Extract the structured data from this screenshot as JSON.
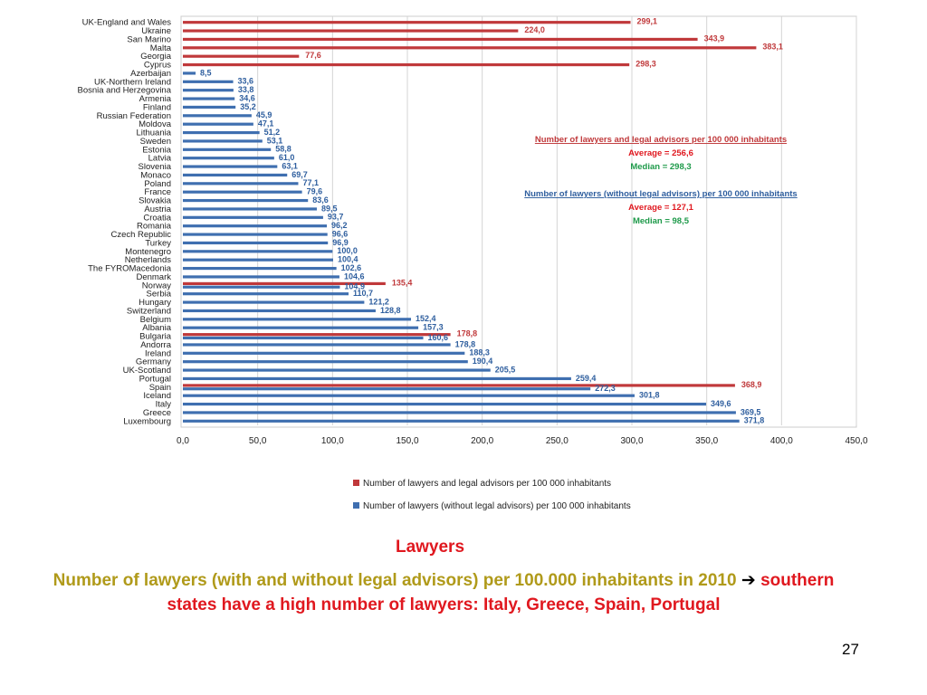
{
  "colors": {
    "with_advisors": "#c0393b",
    "without_advisors": "#3f6fb0",
    "label_red": "#c0393b",
    "label_blue": "#2e5e9e",
    "average": "#e0181f",
    "median": "#1e9a4a",
    "caption_olive": "#b09a1a",
    "caption_red": "#e0181f"
  },
  "chart_data": {
    "type": "bar",
    "orientation": "horizontal",
    "categories": [
      "UK-England and Wales",
      "Ukraine",
      "San Marino",
      "Malta",
      "Georgia",
      "Cyprus",
      "Azerbaijan",
      "UK-Northern Ireland",
      "Bosnia and Herzegovina",
      "Armenia",
      "Finland",
      "Russian Federation",
      "Moldova",
      "Lithuania",
      "Sweden",
      "Estonia",
      "Latvia",
      "Slovenia",
      "Monaco",
      "Poland",
      "France",
      "Slovakia",
      "Austria",
      "Croatia",
      "Romania",
      "Czech Republic",
      "Turkey",
      "Montenegro",
      "Netherlands",
      "The FYROMacedonia",
      "Denmark",
      "Norway",
      "Serbia",
      "Hungary",
      "Switzerland",
      "Belgium",
      "Albania",
      "Bulgaria",
      "Andorra",
      "Ireland",
      "Germany",
      "UK-Scotland",
      "Portugal",
      "Spain",
      "Iceland",
      "Italy",
      "Greece",
      "Luxembourg"
    ],
    "series": [
      {
        "name": "Number of lawyers and legal advisors per 100 000 inhabitants",
        "values": [
          299.1,
          224.0,
          343.9,
          383.1,
          77.6,
          298.3,
          null,
          null,
          null,
          null,
          null,
          null,
          null,
          null,
          null,
          null,
          null,
          null,
          null,
          null,
          null,
          null,
          null,
          null,
          null,
          null,
          null,
          null,
          null,
          null,
          null,
          135.4,
          null,
          null,
          null,
          null,
          null,
          178.8,
          null,
          null,
          null,
          null,
          null,
          368.9,
          null,
          null,
          null,
          null
        ],
        "labels": [
          "299,1",
          "224,0",
          "343,9",
          "383,1",
          "77,6",
          "298,3",
          "",
          "",
          "",
          "",
          "",
          "",
          "",
          "",
          "",
          "",
          "",
          "",
          "",
          "",
          "",
          "",
          "",
          "",
          "",
          "",
          "",
          "",
          "",
          "",
          "",
          "135,4",
          "",
          "",
          "",
          "",
          "",
          "178,8",
          "",
          "",
          "",
          "",
          "",
          "368,9",
          "",
          "",
          "",
          ""
        ]
      },
      {
        "name": "Number of lawyers (without legal advisors) per 100 000 inhabitants",
        "values": [
          null,
          null,
          null,
          null,
          null,
          null,
          8.5,
          33.6,
          33.8,
          34.6,
          35.2,
          45.9,
          47.1,
          51.2,
          53.1,
          58.8,
          61.0,
          63.1,
          69.7,
          77.1,
          79.6,
          83.6,
          89.5,
          93.7,
          96.2,
          96.6,
          96.9,
          100.0,
          100.4,
          102.6,
          104.6,
          104.9,
          110.7,
          121.2,
          128.8,
          152.4,
          157.3,
          160.6,
          178.8,
          188.3,
          190.4,
          205.5,
          259.4,
          272.3,
          301.8,
          349.6,
          369.5,
          371.8
        ],
        "labels": [
          "",
          "",
          "",
          "",
          "",
          "",
          "8,5",
          "33,6",
          "33,8",
          "34,6",
          "35,2",
          "45,9",
          "47,1",
          "51,2",
          "53,1",
          "58,8",
          "61,0",
          "63,1",
          "69,7",
          "77,1",
          "79,6",
          "83,6",
          "89,5",
          "93,7",
          "96,2",
          "96,6",
          "96,9",
          "100,0",
          "100,4",
          "102,6",
          "104,6",
          "104,9",
          "110,7",
          "121,2",
          "128,8",
          "152,4",
          "157,3",
          "160,6",
          "178,8",
          "188,3",
          "190,4",
          "205,5",
          "259,4",
          "272,3",
          "301,8",
          "349,6",
          "369,5",
          "371,8"
        ]
      }
    ],
    "xlim": [
      0,
      450
    ],
    "x_ticks": [
      "0,0",
      "50,0",
      "100,0",
      "150,0",
      "200,0",
      "250,0",
      "300,0",
      "350,0",
      "400,0",
      "450,0"
    ],
    "grid": "vertical",
    "legend_position": "bottom",
    "annotations": {
      "group1_title": "Number of lawyers and legal advisors per 100 000 inhabitants",
      "group1_average": "Average = 256,6",
      "group1_median": "Median = 298,3",
      "group2_title": "Number of lawyers (without legal advisors) per 100 000 inhabitants",
      "group2_average": "Average = 127,1",
      "group2_median": "Median = 98,5"
    }
  },
  "slide": {
    "title": "Lawyers",
    "caption_part1": "Number of lawyers (with and without legal advisors) per 100.000 inhabitants in 2010",
    "caption_arrow": "➔",
    "caption_part2": "southern states have a high number of lawyers: Italy, Greece, Spain, Portugal",
    "page_number": "27"
  }
}
